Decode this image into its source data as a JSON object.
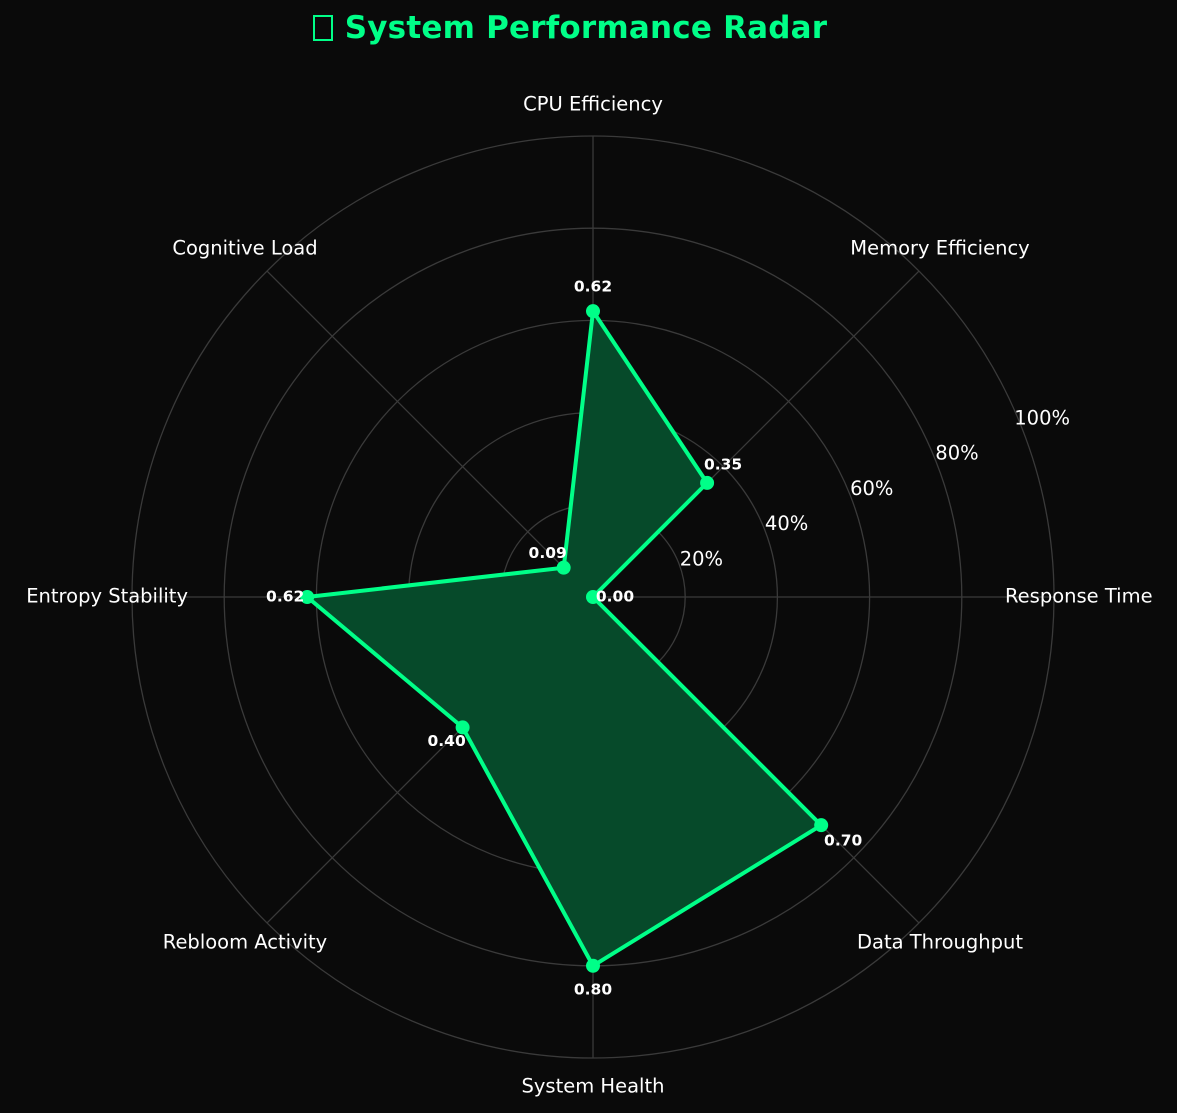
{
  "title": "System Performance Radar",
  "title_icon": "chart-icon",
  "colors": {
    "background": "#0a0a0a",
    "accent": "#00ff88",
    "fill": "#064a2a",
    "grid": "#3a3a3a",
    "text": "#ffffff"
  },
  "chart_data": {
    "type": "radar",
    "title": "System Performance Radar",
    "categories": [
      "Response Time",
      "Memory Efficiency",
      "CPU Efficiency",
      "Cognitive Load",
      "Entropy Stability",
      "Rebloom Activity",
      "System Health",
      "Data Throughput"
    ],
    "values": [
      0.0,
      0.35,
      0.62,
      0.09,
      0.62,
      0.4,
      0.8,
      0.7
    ],
    "value_labels": [
      "0.00",
      "0.35",
      "0.62",
      "0.09",
      "0.62",
      "0.40",
      "0.80",
      "0.70"
    ],
    "radial_ticks": [
      0.2,
      0.4,
      0.6,
      0.8,
      1.0
    ],
    "radial_tick_labels": [
      "20%",
      "40%",
      "60%",
      "80%",
      "100%"
    ],
    "rlim": [
      0,
      1
    ],
    "grid": true,
    "legend": false
  }
}
